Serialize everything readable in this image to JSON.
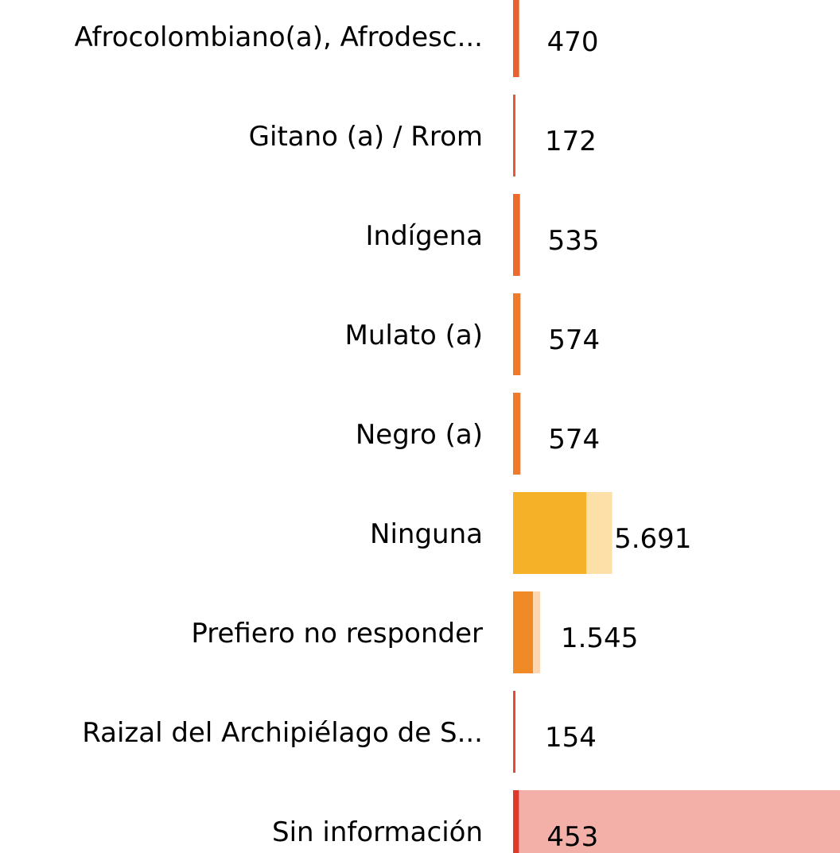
{
  "chart_data": {
    "type": "bar",
    "orientation": "horizontal",
    "categories": [
      "Afrocolombiano(a), Afrodesc...",
      "Gitano (a) / Rrom",
      "Indígena",
      "Mulato (a)",
      "Negro (a)",
      "Ninguna",
      "Prefiero no responder",
      "Raizal del Archipiélago de S...",
      "Sin información"
    ],
    "xlim": [
      0,
      25400
    ],
    "series": [
      {
        "colors": [
          "#f7b9a0",
          "#f5b4a2",
          "#f8c2a0",
          "#f9cba2",
          "#f9cba2",
          "#fce0a8",
          "#fbd6ae",
          "#f5aca2",
          "#f3b0a8"
        ],
        "values": [
          470,
          172,
          535,
          574,
          574,
          7700,
          2100,
          154,
          25400
        ]
      },
      {
        "colors": [
          "#e8622f",
          "#e55a35",
          "#ec6a2a",
          "#ee7a2a",
          "#ee7a2a",
          "#f5b228",
          "#f08a26",
          "#e54a32",
          "#e0382a"
        ],
        "values": [
          470,
          172,
          535,
          574,
          574,
          5691,
          1545,
          154,
          453
        ],
        "value_labels": [
          "470",
          "172",
          "535",
          "574",
          "574",
          "5.691",
          "1.545",
          "154",
          "453"
        ]
      }
    ]
  }
}
